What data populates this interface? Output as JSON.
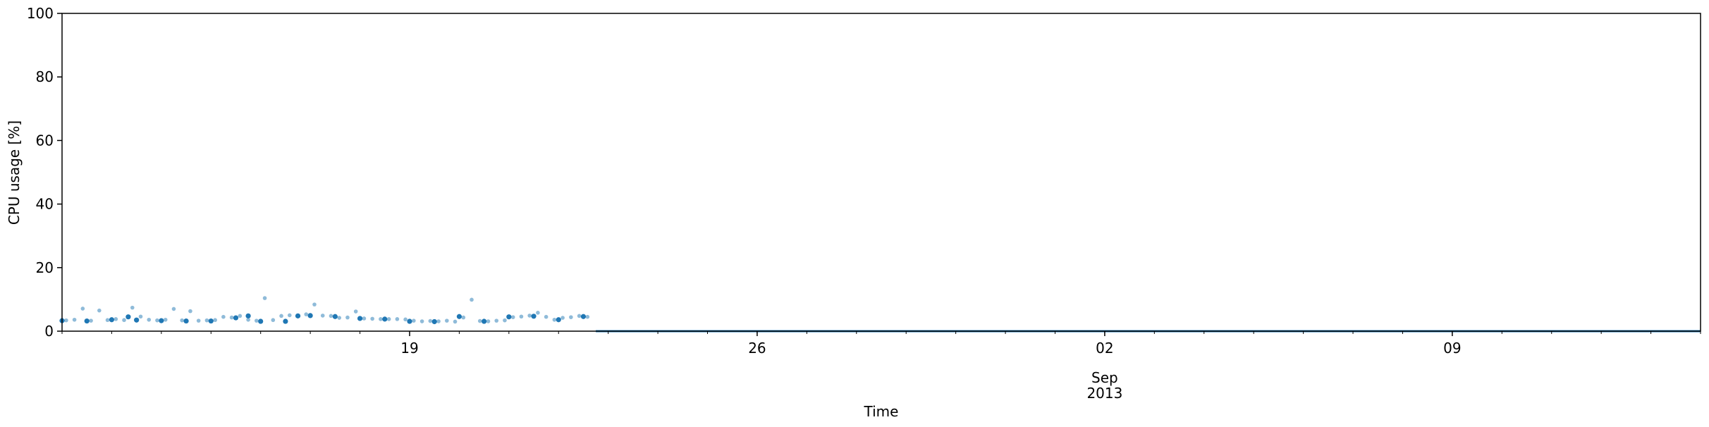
{
  "chart_data": {
    "type": "scatter",
    "title": "",
    "xlabel": "Time",
    "ylabel": "CPU usage [%]",
    "ylim": [
      0,
      100
    ],
    "xlim": [
      "2013-08-12",
      "2013-09-14"
    ],
    "y_ticks": [
      0,
      20,
      40,
      60,
      80,
      100
    ],
    "x_major_ticks": [
      {
        "date": "2013-08-19",
        "label": "19"
      },
      {
        "date": "2013-08-26",
        "label": "26"
      },
      {
        "date": "2013-09-02",
        "label": "02"
      },
      {
        "date": "2013-09-09",
        "label": "09"
      }
    ],
    "x_secondary_label": {
      "date": "2013-09-02",
      "month": "Sep",
      "year": "2013"
    },
    "grid": false,
    "series": [
      {
        "color": "#1f77b4",
        "opacity": 0.5,
        "points": [
          [
            "2013-08-12T02:00",
            3.4
          ],
          [
            "2013-08-12T06:00",
            3.6
          ],
          [
            "2013-08-12T10:00",
            7.1
          ],
          [
            "2013-08-12T14:00",
            3.3
          ],
          [
            "2013-08-12T18:00",
            6.5
          ],
          [
            "2013-08-12T22:00",
            3.5
          ],
          [
            "2013-08-13T02:00",
            3.8
          ],
          [
            "2013-08-13T06:00",
            3.5
          ],
          [
            "2013-08-13T10:00",
            7.4
          ],
          [
            "2013-08-13T14:00",
            4.6
          ],
          [
            "2013-08-13T18:00",
            3.6
          ],
          [
            "2013-08-13T22:00",
            3.4
          ],
          [
            "2013-08-14T02:00",
            3.6
          ],
          [
            "2013-08-14T06:00",
            7.0
          ],
          [
            "2013-08-14T10:00",
            3.4
          ],
          [
            "2013-08-14T14:00",
            6.3
          ],
          [
            "2013-08-14T18:00",
            3.3
          ],
          [
            "2013-08-14T22:00",
            3.4
          ],
          [
            "2013-08-15T02:00",
            3.5
          ],
          [
            "2013-08-15T06:00",
            4.5
          ],
          [
            "2013-08-15T10:00",
            4.3
          ],
          [
            "2013-08-15T14:00",
            4.8
          ],
          [
            "2013-08-15T18:00",
            3.6
          ],
          [
            "2013-08-15T22:00",
            3.3
          ],
          [
            "2013-08-16T02:00",
            10.4
          ],
          [
            "2013-08-16T06:00",
            3.5
          ],
          [
            "2013-08-16T10:00",
            4.8
          ],
          [
            "2013-08-16T14:00",
            5.0
          ],
          [
            "2013-08-16T18:00",
            4.9
          ],
          [
            "2013-08-16T22:00",
            5.3
          ],
          [
            "2013-08-17T02:00",
            8.4
          ],
          [
            "2013-08-17T06:00",
            4.9
          ],
          [
            "2013-08-17T10:00",
            4.8
          ],
          [
            "2013-08-17T14:00",
            4.2
          ],
          [
            "2013-08-17T18:00",
            4.3
          ],
          [
            "2013-08-17T22:00",
            6.2
          ],
          [
            "2013-08-18T02:00",
            4.0
          ],
          [
            "2013-08-18T06:00",
            3.9
          ],
          [
            "2013-08-18T10:00",
            3.8
          ],
          [
            "2013-08-18T14:00",
            3.8
          ],
          [
            "2013-08-18T18:00",
            3.8
          ],
          [
            "2013-08-18T22:00",
            3.7
          ],
          [
            "2013-08-19T02:00",
            3.3
          ],
          [
            "2013-08-19T06:00",
            3.1
          ],
          [
            "2013-08-19T10:00",
            3.2
          ],
          [
            "2013-08-19T14:00",
            3.1
          ],
          [
            "2013-08-19T18:00",
            3.3
          ],
          [
            "2013-08-19T22:00",
            3.0
          ],
          [
            "2013-08-20T02:00",
            4.3
          ],
          [
            "2013-08-20T06:00",
            9.9
          ],
          [
            "2013-08-20T10:00",
            3.2
          ],
          [
            "2013-08-20T14:00",
            3.1
          ],
          [
            "2013-08-20T18:00",
            3.3
          ],
          [
            "2013-08-20T22:00",
            3.4
          ],
          [
            "2013-08-21T02:00",
            4.4
          ],
          [
            "2013-08-21T06:00",
            4.6
          ],
          [
            "2013-08-21T10:00",
            4.9
          ],
          [
            "2013-08-21T14:00",
            5.8
          ],
          [
            "2013-08-21T18:00",
            4.5
          ],
          [
            "2013-08-21T22:00",
            3.6
          ],
          [
            "2013-08-22T02:00",
            4.2
          ],
          [
            "2013-08-22T06:00",
            4.4
          ],
          [
            "2013-08-22T10:00",
            4.8
          ],
          [
            "2013-08-22T14:00",
            4.5
          ]
        ]
      },
      {
        "color": "#1f77b4",
        "opacity": 1.0,
        "points": [
          [
            "2013-08-12T00:00",
            3.3
          ],
          [
            "2013-08-12T12:00",
            3.2
          ],
          [
            "2013-08-13T00:00",
            3.6
          ],
          [
            "2013-08-13T08:00",
            4.5
          ],
          [
            "2013-08-13T12:00",
            3.5
          ],
          [
            "2013-08-14T00:00",
            3.3
          ],
          [
            "2013-08-14T12:00",
            3.2
          ],
          [
            "2013-08-15T00:00",
            3.2
          ],
          [
            "2013-08-15T12:00",
            4.2
          ],
          [
            "2013-08-15T18:00",
            4.8
          ],
          [
            "2013-08-16T00:00",
            3.1
          ],
          [
            "2013-08-16T12:00",
            3.1
          ],
          [
            "2013-08-16T18:00",
            4.8
          ],
          [
            "2013-08-17T00:00",
            4.9
          ],
          [
            "2013-08-17T12:00",
            4.6
          ],
          [
            "2013-08-18T00:00",
            4.0
          ],
          [
            "2013-08-18T12:00",
            3.8
          ],
          [
            "2013-08-19T00:00",
            3.1
          ],
          [
            "2013-08-19T12:00",
            3.0
          ],
          [
            "2013-08-20T00:00",
            4.6
          ],
          [
            "2013-08-20T12:00",
            3.1
          ],
          [
            "2013-08-21T00:00",
            4.5
          ],
          [
            "2013-08-21T12:00",
            4.7
          ],
          [
            "2013-08-22T00:00",
            3.6
          ],
          [
            "2013-08-22T12:00",
            4.6
          ]
        ]
      }
    ],
    "zero_line": {
      "from": "2013-08-22T18:00",
      "to": "2013-09-14",
      "value": 0
    }
  }
}
